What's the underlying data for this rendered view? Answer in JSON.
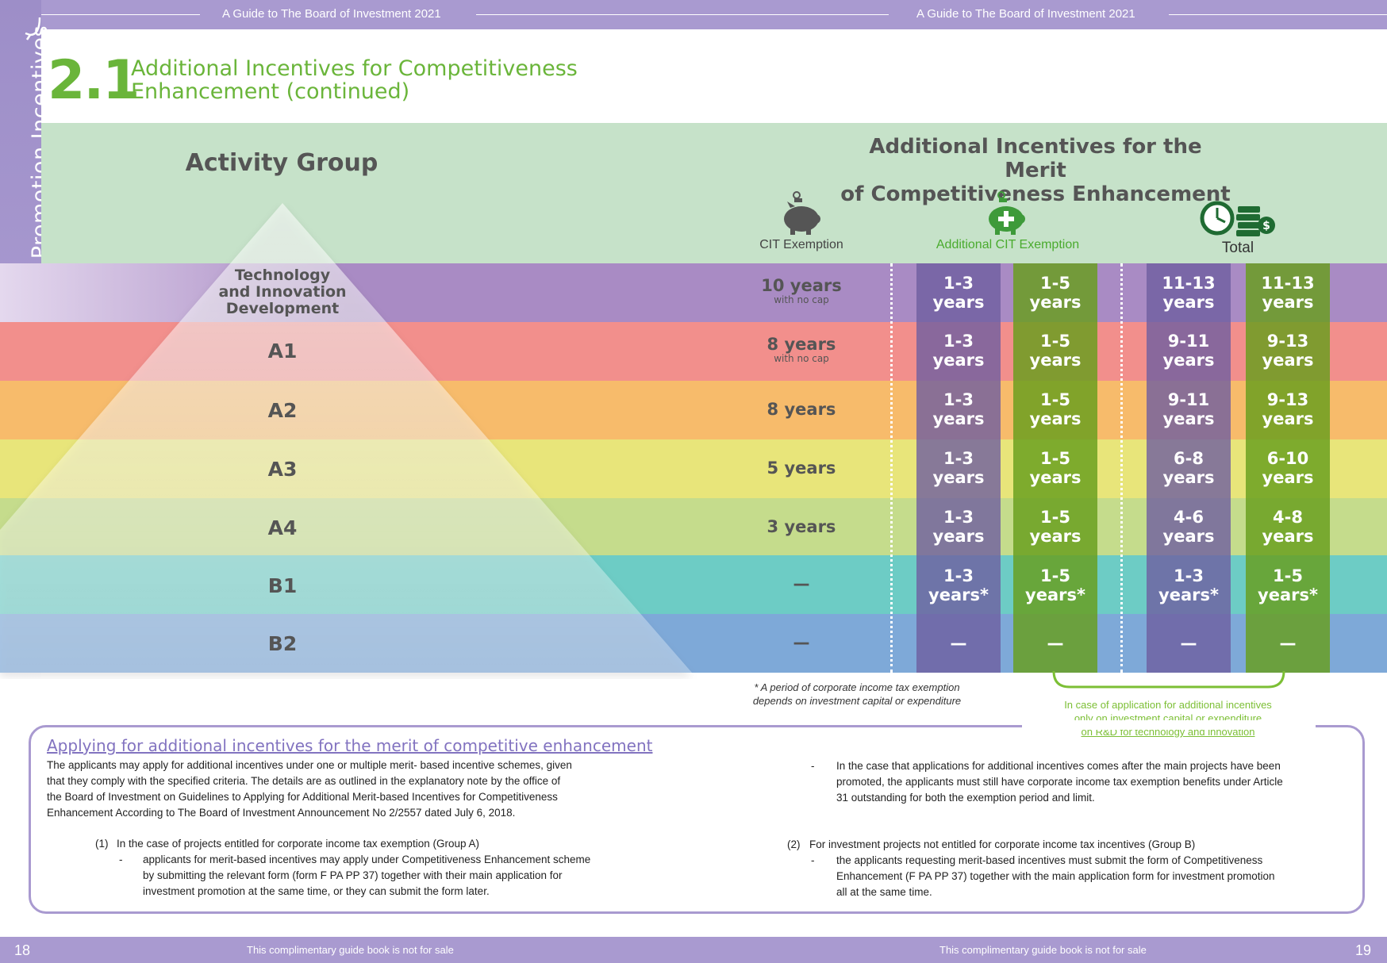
{
  "header": {
    "left_title": "A Guide to The Board of Investment 2021",
    "right_title": "A Guide to The Board of Investment 2021"
  },
  "side_tab": {
    "label": "Criteria for Granting Promotion Incentives"
  },
  "heading": {
    "number": "2.1",
    "line1": "Additional Incentives for Competitiveness",
    "line2": "Enhancement (continued)"
  },
  "table": {
    "activity_group_label": "Activity Group",
    "merit_title_line1": "Additional Incentives for the Merit",
    "merit_title_line2": "of Competitiveness Enhancement",
    "col_cit": "CIT Exemption",
    "col_additional": "Additional CIT Exemption",
    "col_total": "Total",
    "rows": [
      {
        "group_line1": "Technology",
        "group_line2": "and Innovation",
        "group_line3": "Development",
        "cit": "10 years",
        "cit_note": "with no cap",
        "add_min_1": "1-3",
        "add_min_2": "years",
        "add_max_1": "1-5",
        "add_max_2": "years",
        "tot_min_1": "11-13",
        "tot_min_2": "years",
        "tot_max_1": "11-13",
        "tot_max_2": "years"
      },
      {
        "group": "A1",
        "cit": "8 years",
        "cit_note": "with no cap",
        "add_min_1": "1-3",
        "add_min_2": "years",
        "add_max_1": "1-5",
        "add_max_2": "years",
        "tot_min_1": "9-11",
        "tot_min_2": "years",
        "tot_max_1": "9-13",
        "tot_max_2": "years"
      },
      {
        "group": "A2",
        "cit": "8 years",
        "add_min_1": "1-3",
        "add_min_2": "years",
        "add_max_1": "1-5",
        "add_max_2": "years",
        "tot_min_1": "9-11",
        "tot_min_2": "years",
        "tot_max_1": "9-13",
        "tot_max_2": "years"
      },
      {
        "group": "A3",
        "cit": "5 years",
        "add_min_1": "1-3",
        "add_min_2": "years",
        "add_max_1": "1-5",
        "add_max_2": "years",
        "tot_min_1": "6-8",
        "tot_min_2": "years",
        "tot_max_1": "6-10",
        "tot_max_2": "years"
      },
      {
        "group": "A4",
        "cit": "3 years",
        "add_min_1": "1-3",
        "add_min_2": "years",
        "add_max_1": "1-5",
        "add_max_2": "years",
        "tot_min_1": "4-6",
        "tot_min_2": "years",
        "tot_max_1": "4-8",
        "tot_max_2": "years"
      },
      {
        "group": "B1",
        "cit": "—",
        "add_min_1": "1-3",
        "add_min_2": "years*",
        "add_max_1": "1-5",
        "add_max_2": "years*",
        "tot_min_1": "1-3",
        "tot_min_2": "years*",
        "tot_max_1": "1-5",
        "tot_max_2": "years*"
      },
      {
        "group": "B2",
        "cit": "—",
        "add_min_1": "—",
        "add_min_2": "",
        "add_max_1": "—",
        "add_max_2": "",
        "tot_min_1": "—",
        "tot_min_2": "",
        "tot_max_1": "—",
        "tot_max_2": ""
      }
    ],
    "row_colors": [
      "#a98bc4",
      "#f28f8c",
      "#f7bb6b",
      "#e8e57a",
      "#c5dc8c",
      "#6dccc5",
      "#7ea9d8"
    ]
  },
  "notes": {
    "asterisk_line1": "* A period of corporate income tax exemption",
    "asterisk_line2": "depends on investment capital or expenditure",
    "green_line1": "In case of application for additional incentives",
    "green_line2_ul": "only",
    "green_line2_rest": " on investment capital or expenditure",
    "green_line3": "on R&D for technology and innovation"
  },
  "box": {
    "title": "Applying for additional incentives for the merit of competitive enhancement",
    "intro_1": "The applicants may apply for additional incentives under one or multiple merit- based incentive schemes, given",
    "intro_2": "that they comply with the specified criteria. The details are as outlined in the explanatory note by the office of",
    "intro_3": "the Board of Investment on Guidelines to Applying for Additional Merit-based Incentives for Competitiveness",
    "intro_4": "Enhancement According to The Board of Investment Announcement No 2/2557 dated July 6, 2018.",
    "item1_marker": "(1)",
    "item1_head": "In the case of projects entitled for corporate income tax exemption (Group A)",
    "dash": "-",
    "item1_1": "applicants for merit-based incentives may apply under Competitiveness Enhancement scheme",
    "item1_2": "by submitting the relevant form (form F PA PP 37) together with their main application for",
    "item1_3": "investment promotion at the same time, or they can submit the form later.",
    "right_1": "In the case that applications for additional incentives comes after the main projects have been",
    "right_2": "promoted, the applicants must still have corporate income tax exemption benefits under Article",
    "right_3": "31 outstanding for both the exemption period and limit.",
    "item2_marker": "(2)",
    "item2_head": "For investment projects not entitled for corporate income tax incentives (Group B)",
    "item2_1": "the applicants requesting merit-based incentives must submit the form of   Competitiveness",
    "item2_2": "Enhancement   (F PA PP 37) together with the main   application form for investment promotion",
    "item2_3": "all at the same time."
  },
  "footer": {
    "page_left": "18",
    "page_right": "19",
    "left_note": "This complimentary guide book is not for sale",
    "right_note": "This complimentary guide book is not for sale"
  },
  "icons": {
    "cit": "piggy-bank-icon",
    "additional": "piggy-bank-plus-icon",
    "total": "clock-money-icon"
  }
}
